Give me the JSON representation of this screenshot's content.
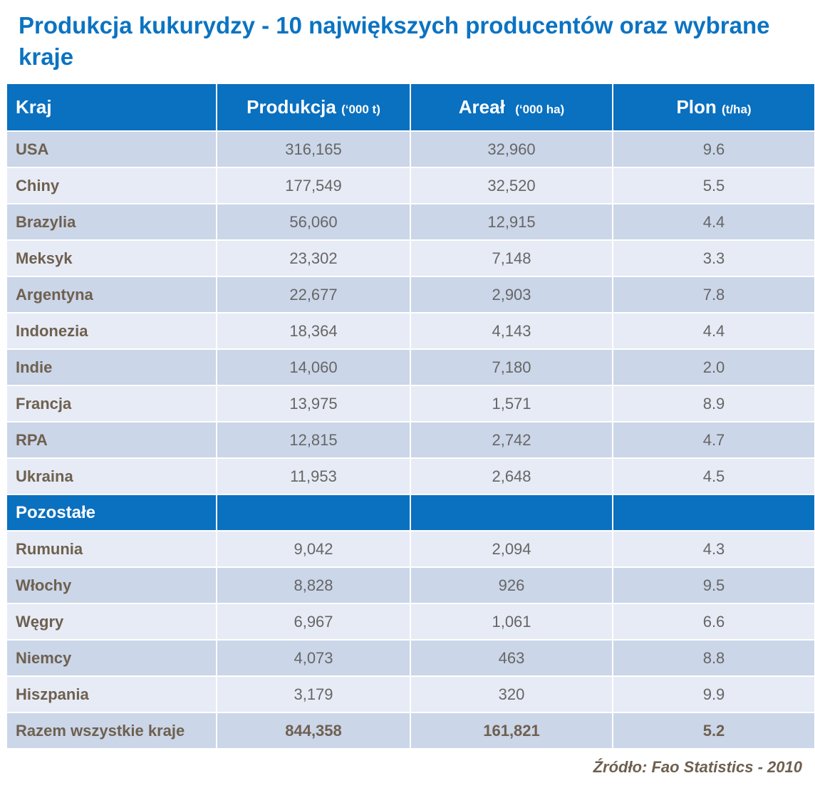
{
  "title": "Produkcja kukurydzy - 10 największych producentów oraz wybrane kraje",
  "header": {
    "country": "Kraj",
    "production": "Produkcja",
    "production_unit": "(‘000 t)",
    "area": "Areał",
    "area_unit": "(‘000 ha)",
    "yield": "Plon",
    "yield_unit": "(t/ha)"
  },
  "top10": [
    {
      "country": "USA",
      "production": "316,165",
      "area": "32,960",
      "yield": "9.6"
    },
    {
      "country": "Chiny",
      "production": "177,549",
      "area": "32,520",
      "yield": "5.5"
    },
    {
      "country": "Brazylia",
      "production": "56,060",
      "area": "12,915",
      "yield": "4.4"
    },
    {
      "country": "Meksyk",
      "production": "23,302",
      "area": "7,148",
      "yield": "3.3"
    },
    {
      "country": "Argentyna",
      "production": "22,677",
      "area": "2,903",
      "yield": "7.8"
    },
    {
      "country": "Indonezia",
      "production": "18,364",
      "area": "4,143",
      "yield": "4.4"
    },
    {
      "country": "Indie",
      "production": "14,060",
      "area": "7,180",
      "yield": "2.0"
    },
    {
      "country": "Francja",
      "production": "13,975",
      "area": "1,571",
      "yield": "8.9"
    },
    {
      "country": "RPA",
      "production": "12,815",
      "area": "2,742",
      "yield": "4.7"
    },
    {
      "country": "Ukraina",
      "production": "11,953",
      "area": "2,648",
      "yield": "4.5"
    }
  ],
  "others_label": "Pozostałe",
  "others": [
    {
      "country": "Rumunia",
      "production": "9,042",
      "area": "2,094",
      "yield": "4.3"
    },
    {
      "country": "Włochy",
      "production": "8,828",
      "area": "926",
      "yield": "9.5"
    },
    {
      "country": "Węgry",
      "production": "6,967",
      "area": "1,061",
      "yield": "6.6"
    },
    {
      "country": "Niemcy",
      "production": "4,073",
      "area": "463",
      "yield": "8.8"
    },
    {
      "country": "Hiszpania",
      "production": "3,179",
      "area": "320",
      "yield": "9.9"
    }
  ],
  "total": {
    "country": "Razem wszystkie kraje",
    "production": "844,358",
    "area": "161,821",
    "yield": "5.2"
  },
  "source": "Źródło:  Fao Statistics - 2010",
  "colors": {
    "title": "#0b73c2",
    "header_bg": "#0a70c0",
    "row_dark": "#cbd6e8",
    "row_light": "#e7ebf5",
    "country_text": "#6e6050"
  }
}
